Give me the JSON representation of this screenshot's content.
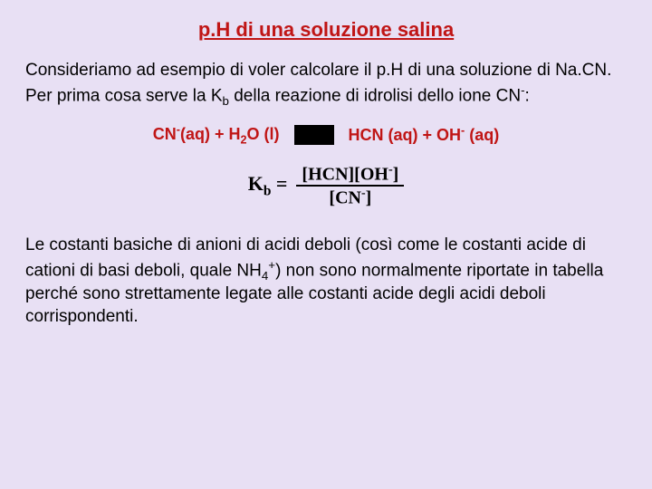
{
  "title": "p.H di una soluzione salina",
  "para1_a": "Consideriamo ad esempio di voler calcolare il p.H di una soluzione di Na.CN. Per prima cosa serve la K",
  "para1_b": " della reazione di idrolisi dello ione CN",
  "para1_c": ":",
  "sub_b": "b",
  "sup_minus": "-",
  "eq_left_a": "CN",
  "eq_left_b": "(aq) + H",
  "eq_left_c": "O (l)",
  "sub_2": "2",
  "eq_right_a": "HCN (aq) + OH",
  "eq_right_b": " (aq)",
  "kb_label_a": "K",
  "kb_label_b": " =",
  "frac_num_a": "[HCN][OH",
  "frac_num_b": "]",
  "frac_den_a": "[CN",
  "frac_den_b": "]",
  "para2_a": "Le costanti basiche di anioni di acidi deboli (così come le costanti acide di cationi di basi deboli, quale NH",
  "para2_b": ") non sono normalmente riportate in tabella perché sono strettamente legate alle costanti acide degli acidi deboli corrispondenti.",
  "sub_4": "4",
  "sup_plus": "+",
  "colors": {
    "background": "#e8e0f4",
    "title": "#c01515",
    "text": "#000000",
    "eq": "#c01515"
  }
}
